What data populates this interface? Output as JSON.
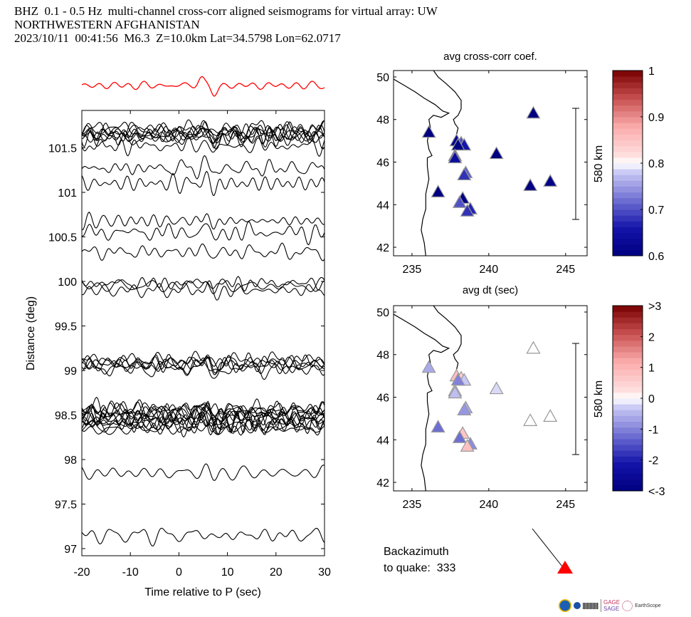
{
  "header": {
    "line1": "BHZ  0.1 - 0.5 Hz  multi-channel cross-corr aligned seismograms for virtual array: UW",
    "line2": "NORTHWESTERN AFGHANISTAN",
    "line3": "2023/10/11  00:41:56  M6.3  Z=10.0km Lat=34.5798 Lon=62.0717"
  },
  "backazimuth": {
    "label_line1": "Backazimuth",
    "label_line2": "to quake:  333",
    "value": 333
  },
  "logos": {
    "gage": "GAGE",
    "sage": "SAGE",
    "earthscope": "EarthScope"
  },
  "colors": {
    "stack_trace": "#ff0000",
    "trace": "#000000",
    "quake_marker": "#ff0000"
  },
  "chart_data": [
    {
      "type": "line",
      "name": "record-section",
      "title": "",
      "xlabel": "Time relative to P (sec)",
      "ylabel": "Distance (deg)",
      "xlim": [
        -20,
        30
      ],
      "ylim": [
        96.92,
        101.92
      ],
      "xticks": [
        -20,
        -10,
        0,
        10,
        20,
        30
      ],
      "yticks": [
        97,
        97.5,
        98,
        98.5,
        99,
        99.5,
        100,
        100.5,
        101,
        101.5
      ],
      "ytick_labels": [
        "97",
        "97.5",
        "98",
        "98.5",
        "99",
        "99.5",
        "100",
        "100.5",
        "101",
        "101.5"
      ],
      "stack_trace": "red beamformed stack above plot, strongest pulse near t=7 s",
      "trace_distances_deg": [
        101.72,
        101.7,
        101.68,
        101.66,
        101.65,
        101.64,
        101.62,
        101.6,
        101.52,
        101.27,
        101.1,
        100.68,
        100.55,
        100.33,
        99.98,
        99.95,
        99.9,
        99.12,
        99.1,
        99.08,
        99.06,
        99.04,
        99.02,
        98.58,
        98.56,
        98.55,
        98.53,
        98.52,
        98.5,
        98.48,
        98.46,
        98.44,
        98.42,
        98.4,
        98.38,
        98.36,
        98.34,
        97.85,
        97.15
      ]
    },
    {
      "type": "scatter",
      "name": "avg-cross-corr-coef-map",
      "title": "avg cross-corr coef.",
      "xlabel": "avg dt (sec)",
      "ylabel": "",
      "xlim": [
        233.8,
        246.4
      ],
      "ylim": [
        41.6,
        50.3
      ],
      "xticks": [
        235,
        240,
        245
      ],
      "yticks": [
        42,
        44,
        46,
        48,
        50
      ],
      "scale_bar": "580 km",
      "colorbar": {
        "min": 0.6,
        "max": 1,
        "ticks": [
          "0.6",
          "0.7",
          "0.8",
          "0.9",
          "1"
        ],
        "colormap": "blue-white-red"
      },
      "points": [
        {
          "lon": 236.1,
          "lat": 47.4,
          "value": 0.6
        },
        {
          "lon": 237.9,
          "lat": 47.0,
          "value": 0.62
        },
        {
          "lon": 238.2,
          "lat": 46.9,
          "value": 0.7
        },
        {
          "lon": 238.4,
          "lat": 46.8,
          "value": 0.66
        },
        {
          "lon": 238.0,
          "lat": 46.8,
          "value": 0.6
        },
        {
          "lon": 237.8,
          "lat": 46.3,
          "value": 0.66
        },
        {
          "lon": 237.8,
          "lat": 46.2,
          "value": 0.64
        },
        {
          "lon": 240.5,
          "lat": 46.4,
          "value": 0.6
        },
        {
          "lon": 238.5,
          "lat": 45.5,
          "value": 0.71
        },
        {
          "lon": 238.4,
          "lat": 45.4,
          "value": 0.68
        },
        {
          "lon": 236.7,
          "lat": 44.6,
          "value": 0.6
        },
        {
          "lon": 238.3,
          "lat": 44.3,
          "value": 0.6
        },
        {
          "lon": 238.1,
          "lat": 44.1,
          "value": 0.7
        },
        {
          "lon": 238.8,
          "lat": 43.8,
          "value": 0.67
        },
        {
          "lon": 238.6,
          "lat": 43.7,
          "value": 0.68
        },
        {
          "lon": 242.9,
          "lat": 48.3,
          "value": 0.6
        },
        {
          "lon": 242.7,
          "lat": 44.9,
          "value": 0.6
        },
        {
          "lon": 244.0,
          "lat": 45.1,
          "value": 0.61
        }
      ]
    },
    {
      "type": "scatter",
      "name": "avg-dt-map",
      "title": "avg dt (sec)",
      "xlabel": "",
      "ylabel": "",
      "xlim": [
        233.8,
        246.4
      ],
      "ylim": [
        41.6,
        50.3
      ],
      "xticks": [
        235,
        240,
        245
      ],
      "yticks": [
        42,
        44,
        46,
        48,
        50
      ],
      "scale_bar": "580 km",
      "colorbar": {
        "min": -3,
        "max": 3,
        "ticks": [
          "<-3",
          "-2",
          "-1",
          "0",
          "1",
          "2",
          ">3"
        ],
        "colormap": "blue-white-red"
      },
      "points": [
        {
          "lon": 236.1,
          "lat": 47.4,
          "value": -0.6
        },
        {
          "lon": 237.9,
          "lat": 47.0,
          "value": 0.8
        },
        {
          "lon": 238.2,
          "lat": 46.9,
          "value": 0.5
        },
        {
          "lon": 238.4,
          "lat": 46.8,
          "value": -0.3
        },
        {
          "lon": 238.0,
          "lat": 46.8,
          "value": -1.0
        },
        {
          "lon": 237.8,
          "lat": 46.3,
          "value": -0.2
        },
        {
          "lon": 237.8,
          "lat": 46.2,
          "value": -0.4
        },
        {
          "lon": 240.5,
          "lat": 46.4,
          "value": -0.2
        },
        {
          "lon": 238.5,
          "lat": 45.5,
          "value": -0.6
        },
        {
          "lon": 238.4,
          "lat": 45.4,
          "value": -0.8
        },
        {
          "lon": 236.7,
          "lat": 44.6,
          "value": -1.2
        },
        {
          "lon": 238.3,
          "lat": 44.3,
          "value": 0.7
        },
        {
          "lon": 238.1,
          "lat": 44.1,
          "value": -1.2
        },
        {
          "lon": 238.8,
          "lat": 43.8,
          "value": -0.9
        },
        {
          "lon": 238.6,
          "lat": 43.7,
          "value": 0.8
        },
        {
          "lon": 242.9,
          "lat": 48.3,
          "value": 0.0
        },
        {
          "lon": 242.7,
          "lat": 44.9,
          "value": 0.0
        },
        {
          "lon": 244.0,
          "lat": 45.1,
          "value": 0.0
        }
      ]
    }
  ]
}
